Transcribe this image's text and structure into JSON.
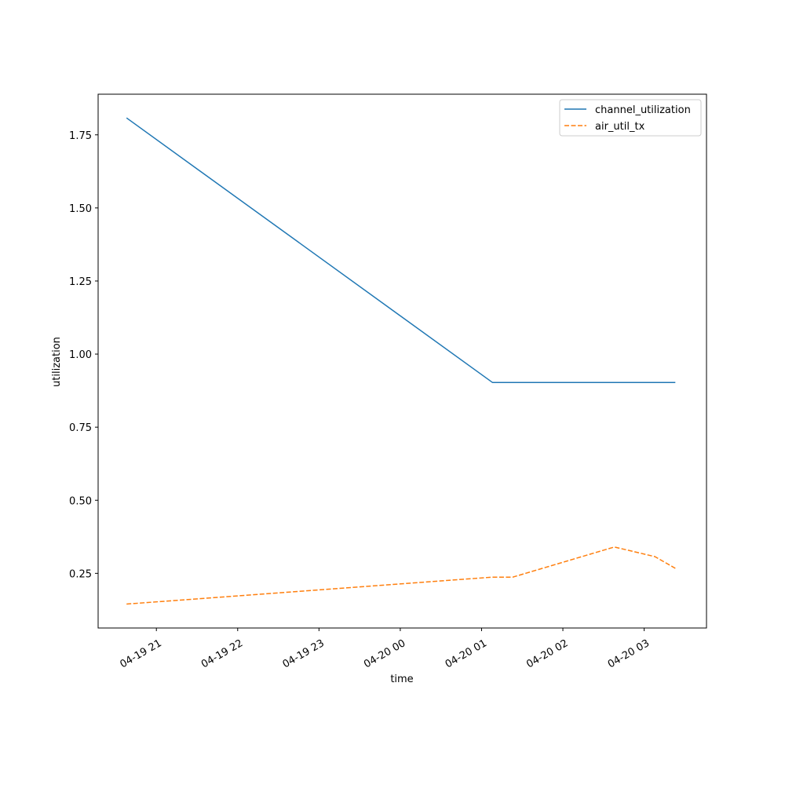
{
  "chart_data": {
    "type": "line",
    "title": "",
    "xlabel": "time",
    "ylabel": "utilization",
    "x_axis": {
      "type": "datetime",
      "range": [
        "2019-04-19 20:17",
        "2019-04-20 03:46"
      ],
      "ticks": [
        {
          "value": "2019-04-19 21:00",
          "label": "04-19 21"
        },
        {
          "value": "2019-04-19 22:00",
          "label": "04-19 22"
        },
        {
          "value": "2019-04-19 23:00",
          "label": "04-19 23"
        },
        {
          "value": "2019-04-20 00:00",
          "label": "04-20 00"
        },
        {
          "value": "2019-04-20 01:00",
          "label": "04-20 01"
        },
        {
          "value": "2019-04-20 02:00",
          "label": "04-20 02"
        },
        {
          "value": "2019-04-20 03:00",
          "label": "04-20 03"
        }
      ]
    },
    "ylim": [
      0.063,
      1.889
    ],
    "y_ticks": [
      {
        "value": 0.25,
        "label": "0.25"
      },
      {
        "value": 0.5,
        "label": "0.50"
      },
      {
        "value": 0.75,
        "label": "0.75"
      },
      {
        "value": 1.0,
        "label": "1.00"
      },
      {
        "value": 1.25,
        "label": "1.25"
      },
      {
        "value": 1.5,
        "label": "1.50"
      },
      {
        "value": 1.75,
        "label": "1.75"
      }
    ],
    "grid": false,
    "legend": {
      "placement": "top-right"
    },
    "series": [
      {
        "name": "channel_utilization",
        "color": "#1f77b4",
        "style": "solid",
        "points": [
          {
            "x": "2019-04-19 20:38",
            "y": 1.808
          },
          {
            "x": "2019-04-20 01:08",
            "y": 0.903
          },
          {
            "x": "2019-04-20 03:23",
            "y": 0.903
          }
        ]
      },
      {
        "name": "air_util_tx",
        "color": "#ff7f0e",
        "style": "dashed",
        "points": [
          {
            "x": "2019-04-19 20:38",
            "y": 0.145
          },
          {
            "x": "2019-04-20 01:08",
            "y": 0.237
          },
          {
            "x": "2019-04-20 01:23",
            "y": 0.237
          },
          {
            "x": "2019-04-20 02:38",
            "y": 0.34
          },
          {
            "x": "2019-04-20 03:08",
            "y": 0.307
          },
          {
            "x": "2019-04-20 03:23",
            "y": 0.267
          }
        ]
      }
    ]
  }
}
